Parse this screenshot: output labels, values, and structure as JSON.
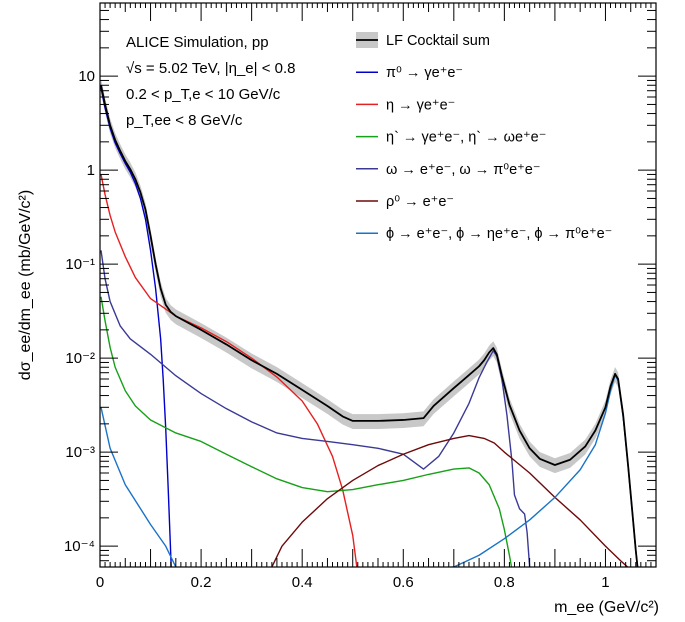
{
  "chart_data": {
    "type": "line",
    "x_axis": {
      "title": "m_ee (GeV/c²)",
      "range": [
        0,
        1.1
      ],
      "scale": "linear",
      "tick_labels": [
        "0",
        "0.2",
        "0.4",
        "0.6",
        "0.8",
        "1"
      ],
      "tick_values": [
        0,
        0.2,
        0.4,
        0.6,
        0.8,
        1.0
      ]
    },
    "y_axis": {
      "title": "dσ_ee/dm_ee (mb/GeV/c²)",
      "range": [
        6e-05,
        60
      ],
      "scale": "log",
      "tick_labels": [
        "10⁻⁴",
        "10⁻³",
        "10⁻²",
        "10⁻¹",
        "1",
        "10"
      ],
      "tick_values": [
        0.0001,
        0.001,
        0.01,
        0.1,
        1,
        10
      ]
    },
    "info_text": [
      "ALICE Simulation, pp",
      "√s = 5.02 TeV, |η_e| < 0.8",
      "0.2 < p_T,e < 10 GeV/c",
      "p_T,ee < 8 GeV/c"
    ],
    "legend_position": "top-right",
    "series": [
      {
        "name": "LF Cocktail sum",
        "color": "#000000",
        "band_color": "#c8c8c8",
        "band_fraction": 0.18,
        "points": [
          [
            0.002,
            8
          ],
          [
            0.01,
            5
          ],
          [
            0.02,
            3
          ],
          [
            0.03,
            2.1
          ],
          [
            0.04,
            1.6
          ],
          [
            0.05,
            1.25
          ],
          [
            0.06,
            1.02
          ],
          [
            0.07,
            0.8
          ],
          [
            0.08,
            0.58
          ],
          [
            0.09,
            0.38
          ],
          [
            0.1,
            0.2
          ],
          [
            0.11,
            0.1
          ],
          [
            0.12,
            0.055
          ],
          [
            0.13,
            0.037
          ],
          [
            0.14,
            0.031
          ],
          [
            0.15,
            0.028
          ],
          [
            0.2,
            0.02
          ],
          [
            0.25,
            0.014
          ],
          [
            0.3,
            0.0095
          ],
          [
            0.35,
            0.0068
          ],
          [
            0.4,
            0.0046
          ],
          [
            0.45,
            0.0031
          ],
          [
            0.48,
            0.0024
          ],
          [
            0.5,
            0.00215
          ],
          [
            0.55,
            0.00215
          ],
          [
            0.6,
            0.0022
          ],
          [
            0.64,
            0.0023
          ],
          [
            0.66,
            0.0031
          ],
          [
            0.7,
            0.0048
          ],
          [
            0.73,
            0.0066
          ],
          [
            0.75,
            0.0082
          ],
          [
            0.76,
            0.0095
          ],
          [
            0.77,
            0.0115
          ],
          [
            0.778,
            0.0128
          ],
          [
            0.785,
            0.011
          ],
          [
            0.795,
            0.0065
          ],
          [
            0.81,
            0.0032
          ],
          [
            0.83,
            0.0017
          ],
          [
            0.85,
            0.0011
          ],
          [
            0.87,
            0.00085
          ],
          [
            0.9,
            0.00073
          ],
          [
            0.93,
            0.00083
          ],
          [
            0.96,
            0.00115
          ],
          [
            0.98,
            0.0017
          ],
          [
            1.0,
            0.003
          ],
          [
            1.01,
            0.005
          ],
          [
            1.019,
            0.0068
          ],
          [
            1.025,
            0.006
          ],
          [
            1.035,
            0.0025
          ],
          [
            1.045,
            0.0007
          ],
          [
            1.055,
            0.00018
          ],
          [
            1.06,
            9e-05
          ],
          [
            1.065,
            5e-05
          ]
        ]
      },
      {
        "name": "π⁰ → γe⁺e⁻",
        "color": "#0000cc",
        "points": [
          [
            0.002,
            7.5
          ],
          [
            0.01,
            4.6
          ],
          [
            0.02,
            2.8
          ],
          [
            0.03,
            1.95
          ],
          [
            0.04,
            1.5
          ],
          [
            0.05,
            1.18
          ],
          [
            0.06,
            0.95
          ],
          [
            0.07,
            0.72
          ],
          [
            0.08,
            0.5
          ],
          [
            0.09,
            0.3
          ],
          [
            0.1,
            0.14
          ],
          [
            0.11,
            0.055
          ],
          [
            0.12,
            0.016
          ],
          [
            0.125,
            0.006
          ],
          [
            0.13,
            0.0018
          ],
          [
            0.135,
            0.0004
          ],
          [
            0.14,
            8e-05
          ],
          [
            0.143,
            3e-05
          ]
        ]
      },
      {
        "name": "η → γe⁺e⁻",
        "color": "#e62020",
        "points": [
          [
            0.002,
            0.9
          ],
          [
            0.01,
            0.55
          ],
          [
            0.02,
            0.33
          ],
          [
            0.03,
            0.22
          ],
          [
            0.05,
            0.12
          ],
          [
            0.07,
            0.072
          ],
          [
            0.1,
            0.043
          ],
          [
            0.15,
            0.028
          ],
          [
            0.2,
            0.021
          ],
          [
            0.25,
            0.015
          ],
          [
            0.3,
            0.01
          ],
          [
            0.35,
            0.0063
          ],
          [
            0.4,
            0.0035
          ],
          [
            0.43,
            0.002
          ],
          [
            0.46,
            0.0009
          ],
          [
            0.48,
            0.0004
          ],
          [
            0.5,
            0.00013
          ],
          [
            0.51,
            5e-05
          ]
        ]
      },
      {
        "name": "η` → γe⁺e⁻, η` → ωe⁺e⁻",
        "color": "#18a018",
        "points": [
          [
            0.002,
            0.045
          ],
          [
            0.01,
            0.025
          ],
          [
            0.02,
            0.013
          ],
          [
            0.03,
            0.008
          ],
          [
            0.05,
            0.0045
          ],
          [
            0.07,
            0.0031
          ],
          [
            0.1,
            0.0022
          ],
          [
            0.15,
            0.0016
          ],
          [
            0.2,
            0.0013
          ],
          [
            0.25,
            0.00095
          ],
          [
            0.3,
            0.0007
          ],
          [
            0.35,
            0.00052
          ],
          [
            0.4,
            0.00042
          ],
          [
            0.45,
            0.00038
          ],
          [
            0.5,
            0.0004
          ],
          [
            0.55,
            0.00045
          ],
          [
            0.6,
            0.0005
          ],
          [
            0.65,
            0.00058
          ],
          [
            0.7,
            0.00066
          ],
          [
            0.73,
            0.00068
          ],
          [
            0.75,
            0.0006
          ],
          [
            0.77,
            0.00045
          ],
          [
            0.79,
            0.00025
          ],
          [
            0.8,
            0.00015
          ],
          [
            0.81,
            8e-05
          ],
          [
            0.82,
            4e-05
          ]
        ]
      },
      {
        "name": "ω → e⁺e⁻, ω → π⁰e⁺e⁻",
        "color": "#3a3a96",
        "points": [
          [
            0.002,
            0.14
          ],
          [
            0.01,
            0.07
          ],
          [
            0.02,
            0.04
          ],
          [
            0.04,
            0.022
          ],
          [
            0.06,
            0.016
          ],
          [
            0.1,
            0.011
          ],
          [
            0.15,
            0.0065
          ],
          [
            0.2,
            0.0042
          ],
          [
            0.25,
            0.0029
          ],
          [
            0.3,
            0.0021
          ],
          [
            0.35,
            0.0016
          ],
          [
            0.4,
            0.0014
          ],
          [
            0.45,
            0.0013
          ],
          [
            0.5,
            0.0012
          ],
          [
            0.55,
            0.0011
          ],
          [
            0.6,
            0.00095
          ],
          [
            0.64,
            0.00066
          ],
          [
            0.67,
            0.0009
          ],
          [
            0.7,
            0.0016
          ],
          [
            0.73,
            0.0033
          ],
          [
            0.75,
            0.0062
          ],
          [
            0.765,
            0.009
          ],
          [
            0.778,
            0.012
          ],
          [
            0.785,
            0.0105
          ],
          [
            0.795,
            0.006
          ],
          [
            0.805,
            0.0025
          ],
          [
            0.815,
            0.0008
          ],
          [
            0.82,
            0.00035
          ],
          [
            0.83,
            0.00025
          ],
          [
            0.84,
            0.00022
          ],
          [
            0.845,
            0.00014
          ],
          [
            0.85,
            6e-05
          ],
          [
            0.855,
            3e-05
          ]
        ]
      },
      {
        "name": "ρ⁰ → e⁺e⁻",
        "color": "#6e0a0a",
        "points": [
          [
            0.32,
            3e-05
          ],
          [
            0.34,
            6e-05
          ],
          [
            0.36,
            0.0001
          ],
          [
            0.4,
            0.00018
          ],
          [
            0.45,
            0.00032
          ],
          [
            0.5,
            0.0005
          ],
          [
            0.55,
            0.00072
          ],
          [
            0.6,
            0.00095
          ],
          [
            0.65,
            0.0012
          ],
          [
            0.7,
            0.0014
          ],
          [
            0.73,
            0.0015
          ],
          [
            0.76,
            0.0014
          ],
          [
            0.78,
            0.00125
          ],
          [
            0.8,
            0.001
          ],
          [
            0.85,
            0.0006
          ],
          [
            0.9,
            0.00033
          ],
          [
            0.95,
            0.00019
          ],
          [
            1.0,
            0.0001
          ],
          [
            1.03,
            7e-05
          ],
          [
            1.06,
            5e-05
          ]
        ]
      },
      {
        "name": "ϕ → e⁺e⁻, ϕ → ηe⁺e⁻, ϕ → π⁰e⁺e⁻",
        "color": "#1a73c8",
        "points": [
          [
            0.002,
            0.003
          ],
          [
            0.02,
            0.0011
          ],
          [
            0.05,
            0.00045
          ],
          [
            0.1,
            0.00017
          ],
          [
            0.13,
            0.0001
          ],
          [
            0.15,
            6e-05
          ],
          [
            0.17,
            4e-05
          ],
          [
            0.7,
            6e-05
          ],
          [
            0.75,
            8e-05
          ],
          [
            0.8,
            0.00012
          ],
          [
            0.85,
            0.00019
          ],
          [
            0.9,
            0.00033
          ],
          [
            0.95,
            0.00065
          ],
          [
            0.98,
            0.0012
          ],
          [
            1.0,
            0.0026
          ],
          [
            1.01,
            0.0045
          ],
          [
            1.019,
            0.0066
          ],
          [
            1.025,
            0.0058
          ],
          [
            1.035,
            0.0024
          ],
          [
            1.045,
            0.0007
          ],
          [
            1.055,
            0.00018
          ],
          [
            1.06,
            9e-05
          ],
          [
            1.065,
            5e-05
          ]
        ]
      }
    ]
  }
}
